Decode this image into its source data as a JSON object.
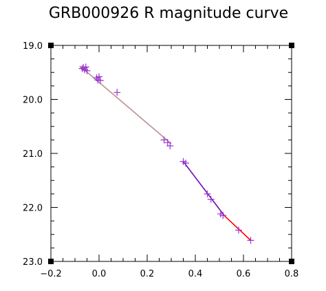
{
  "chart_data": {
    "type": "scatter",
    "title": "GRB000926 R magnitude curve",
    "xlim": [
      -0.2,
      0.8
    ],
    "ylim": [
      23.0,
      19.0
    ],
    "y_inverted": true,
    "x_major_ticks": [
      -0.2,
      0.0,
      0.2,
      0.4,
      0.6,
      0.8
    ],
    "x_tick_labels": [
      "−0.2",
      "0.0",
      "0.2",
      "0.4",
      "0.6",
      "0.8"
    ],
    "x_minor_step": 0.05,
    "y_major_ticks": [
      19.0,
      20.0,
      21.0,
      22.0,
      23.0
    ],
    "y_tick_labels": [
      "19.0",
      "20.0",
      "21.0",
      "22.0",
      "23.0"
    ],
    "y_minor_step": 0.25,
    "grid": false,
    "marker": "plus",
    "marker_color": "#9933cc",
    "points": [
      {
        "x": -0.07,
        "y": 19.43
      },
      {
        "x": -0.065,
        "y": 19.41
      },
      {
        "x": -0.06,
        "y": 19.45
      },
      {
        "x": -0.055,
        "y": 19.4
      },
      {
        "x": -0.05,
        "y": 19.47
      },
      {
        "x": -0.01,
        "y": 19.6
      },
      {
        "x": -0.005,
        "y": 19.64
      },
      {
        "x": 0.0,
        "y": 19.58
      },
      {
        "x": 0.005,
        "y": 19.65
      },
      {
        "x": 0.075,
        "y": 19.87
      },
      {
        "x": 0.27,
        "y": 20.75
      },
      {
        "x": 0.285,
        "y": 20.8
      },
      {
        "x": 0.295,
        "y": 20.86
      },
      {
        "x": 0.35,
        "y": 21.15
      },
      {
        "x": 0.36,
        "y": 21.18
      },
      {
        "x": 0.45,
        "y": 21.75
      },
      {
        "x": 0.465,
        "y": 21.85
      },
      {
        "x": 0.505,
        "y": 22.12
      },
      {
        "x": 0.515,
        "y": 22.15
      },
      {
        "x": 0.58,
        "y": 22.42
      },
      {
        "x": 0.63,
        "y": 22.61
      }
    ],
    "fit_segments": [
      {
        "x": [
          -0.08,
          0.3
        ],
        "y": [
          19.38,
          20.82
        ],
        "color": "#bc8f8f"
      },
      {
        "x": [
          0.35,
          0.52
        ],
        "y": [
          21.15,
          22.15
        ],
        "color": "#6a0dad"
      },
      {
        "x": [
          0.52,
          0.63
        ],
        "y": [
          22.15,
          22.61
        ],
        "color": "#ff0000"
      }
    ]
  }
}
